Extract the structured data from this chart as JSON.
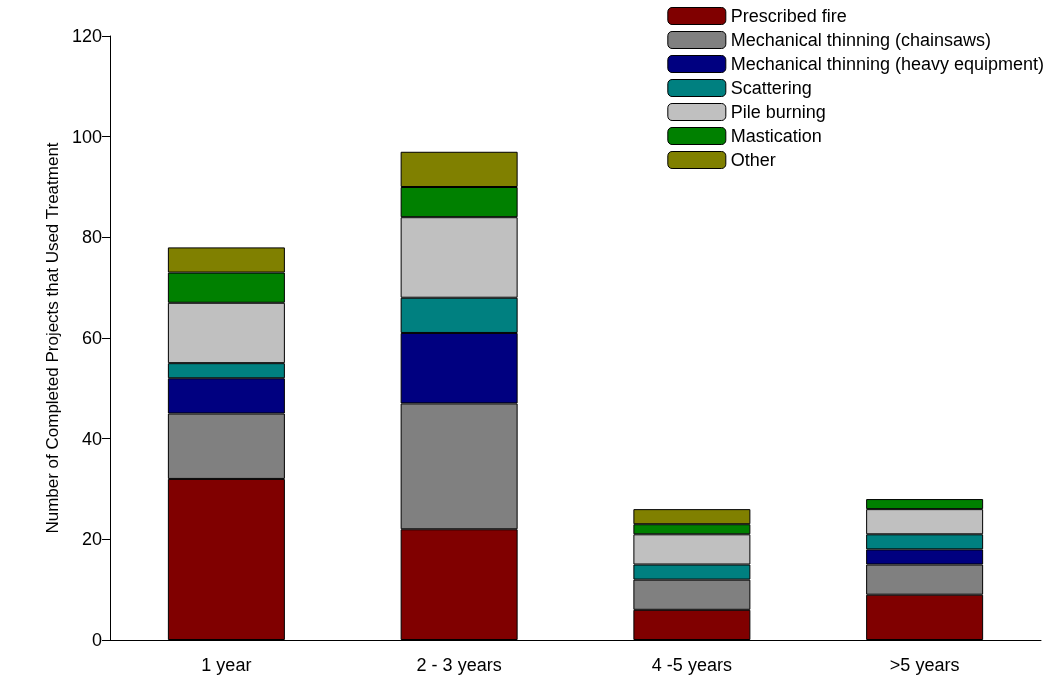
{
  "chart_data": {
    "type": "bar",
    "stacked": true,
    "ylabel": "Number of Completed Projects that Used Treatment",
    "categories": [
      "1 year",
      "2 - 3 years",
      "4 -5 years",
      ">5 years"
    ],
    "ylim": [
      0,
      120
    ],
    "yticks": [
      0,
      20,
      40,
      60,
      80,
      100,
      120
    ],
    "grid": false,
    "legend": "top right",
    "series": [
      {
        "name": "Prescribed fire",
        "color": "#800000",
        "values": [
          32,
          22,
          6,
          9
        ]
      },
      {
        "name": "Mechanical thinning (chainsaws)",
        "color": "#808080",
        "values": [
          13,
          25,
          6,
          6
        ]
      },
      {
        "name": "Mechanical thinning (heavy equipment)",
        "color": "#000080",
        "values": [
          7,
          14,
          0,
          3
        ]
      },
      {
        "name": "Scattering",
        "color": "#008080",
        "values": [
          3,
          7,
          3,
          3
        ]
      },
      {
        "name": "Pile burning",
        "color": "#c0c0c0",
        "values": [
          12,
          16,
          6,
          5
        ]
      },
      {
        "name": "Mastication",
        "color": "#008000",
        "values": [
          6,
          6,
          2,
          2
        ]
      },
      {
        "name": "Other",
        "color": "#808000",
        "values": [
          5,
          7,
          3,
          0
        ]
      }
    ]
  }
}
